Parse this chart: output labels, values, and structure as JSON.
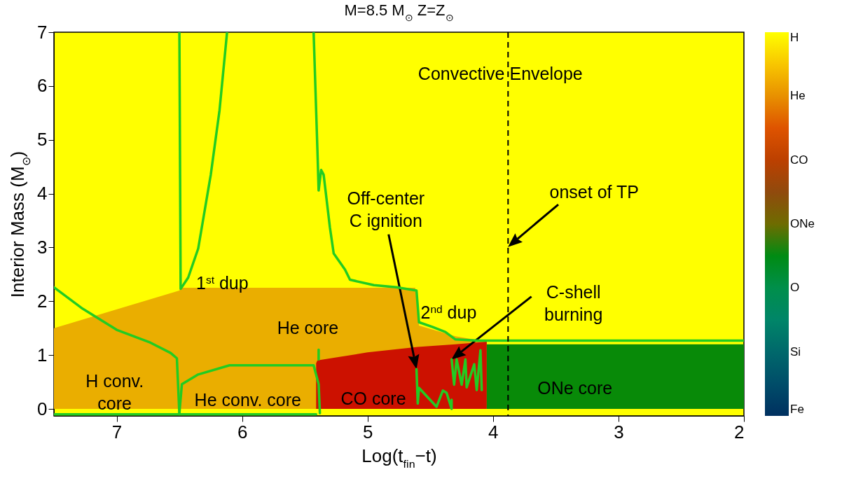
{
  "chart_data": {
    "type": "line",
    "title": "M=8.5 M$_{⊙}$  Z=Z$_{⊙}$",
    "xlabel": "Log(t$_{fin}$−t)",
    "ylabel": "Interior Mass (M$_{⊙}$)",
    "xlim": [
      7.5,
      2
    ],
    "xticks": [
      7,
      6,
      5,
      4,
      3,
      2
    ],
    "ylim": [
      -0.13,
      7
    ],
    "yticks": [
      0,
      1,
      2,
      3,
      4,
      5,
      6,
      7
    ],
    "clim": [
      0,
      6
    ],
    "cticks": [
      {
        "value": 6,
        "label": "H"
      },
      {
        "value": 5,
        "label": "He"
      },
      {
        "value": 4,
        "label": "CO"
      },
      {
        "value": 3,
        "label": "ONe"
      },
      {
        "value": 2,
        "label": "O"
      },
      {
        "value": 1,
        "label": "Si"
      },
      {
        "value": 0,
        "label": "Fe"
      }
    ],
    "colors": [
      "#003060",
      "#006068",
      "#009060",
      "#008a00",
      "#8a4a10",
      "#d83000",
      "#eaa000",
      "#ffff00"
    ],
    "series": [
      {
        "type": "area",
        "color": "#eaae00",
        "x": [
          7.5,
          6.5,
          6.49,
          4.62,
          4.59,
          4.3,
          4.05
        ],
        "values": [
          1.5,
          2.2,
          2.25,
          2.25,
          1.55,
          1.35,
          1.25
        ]
      },
      {
        "type": "area",
        "color": "#cc1100",
        "x": [
          5.41,
          5.4,
          5.0,
          4.6,
          4.3,
          4.05
        ],
        "values": [
          0.85,
          0.9,
          1.05,
          1.15,
          1.2,
          1.25
        ]
      },
      {
        "type": "area",
        "color": "#088a08",
        "x": [
          4.05,
          2
        ],
        "values": [
          1.2,
          1.2
        ]
      },
      {
        "color": "#22cc22",
        "x": [
          7.5,
          7.27,
          7.0,
          6.73,
          6.57,
          6.52,
          6.5
        ],
        "values": [
          2.26,
          1.86,
          1.47,
          1.23,
          1.04,
          0.94,
          -0.1
        ]
      },
      {
        "color": "#22cc22",
        "x": [
          7.5,
          5.41
        ],
        "values": [
          -0.1,
          -0.1
        ]
      },
      {
        "color": "#22cc22",
        "x": [
          6.5,
          6.49,
          6.43,
          6.35,
          6.25,
          6.18,
          6.12
        ],
        "values": [
          7.0,
          2.23,
          2.44,
          2.98,
          4.35,
          5.55,
          7.0
        ]
      },
      {
        "color": "#22cc22",
        "x": [
          5.43,
          5.4,
          5.39,
          5.37,
          5.35,
          5.3,
          5.27,
          5.18,
          5.14,
          4.95,
          4.77,
          4.61,
          4.59,
          4.48,
          4.38,
          4.3,
          4.12,
          4.01,
          2
        ],
        "values": [
          7.0,
          4.83,
          4.06,
          4.44,
          4.35,
          3.37,
          2.89,
          2.59,
          2.4,
          2.3,
          2.26,
          2.2,
          1.61,
          1.52,
          1.43,
          1.29,
          1.27,
          1.27,
          1.27
        ]
      },
      {
        "color": "#22cc22",
        "x": [
          6.5,
          6.48,
          6.35,
          6.1,
          5.81,
          5.43,
          5.39,
          5.38
        ],
        "values": [
          -0.08,
          0.46,
          0.64,
          0.81,
          0.81,
          0.81,
          0.46,
          -0.08
        ]
      },
      {
        "color": "#22cc22",
        "x": [
          5.39,
          5.39
        ],
        "values": [
          0.92,
          1.1
        ]
      },
      {
        "color": "#22cc22",
        "x": [
          4.61,
          4.6,
          4.45,
          4.33,
          4.33,
          4.37,
          4.4,
          4.59
        ],
        "values": [
          0.74,
          0.1,
          0.04,
          0.0,
          0.17,
          0.3,
          0.34,
          0.39
        ]
      },
      {
        "color": "#22cc22",
        "x": [
          4.33,
          4.31,
          4.29,
          4.25,
          4.22,
          4.21,
          4.15,
          4.13,
          4.1,
          4.09
        ],
        "values": [
          0.92,
          0.45,
          0.92,
          0.45,
          0.92,
          0.4,
          0.83,
          0.35,
          1.09,
          0.35
        ]
      }
    ],
    "ref_lines": [
      {
        "axis": "x",
        "value": 3.88,
        "color": "#000000",
        "line_style": "dashed"
      }
    ],
    "annotations": [
      "Convective Envelope",
      "1$^{st}$ dup",
      "He core",
      "H conv.\ncore",
      "He conv. core",
      "CO core",
      "ONe core",
      "2$^{nd}$ dup",
      "Off-center\nC ignition",
      "onset of TP",
      "C-shell\nburning"
    ]
  }
}
